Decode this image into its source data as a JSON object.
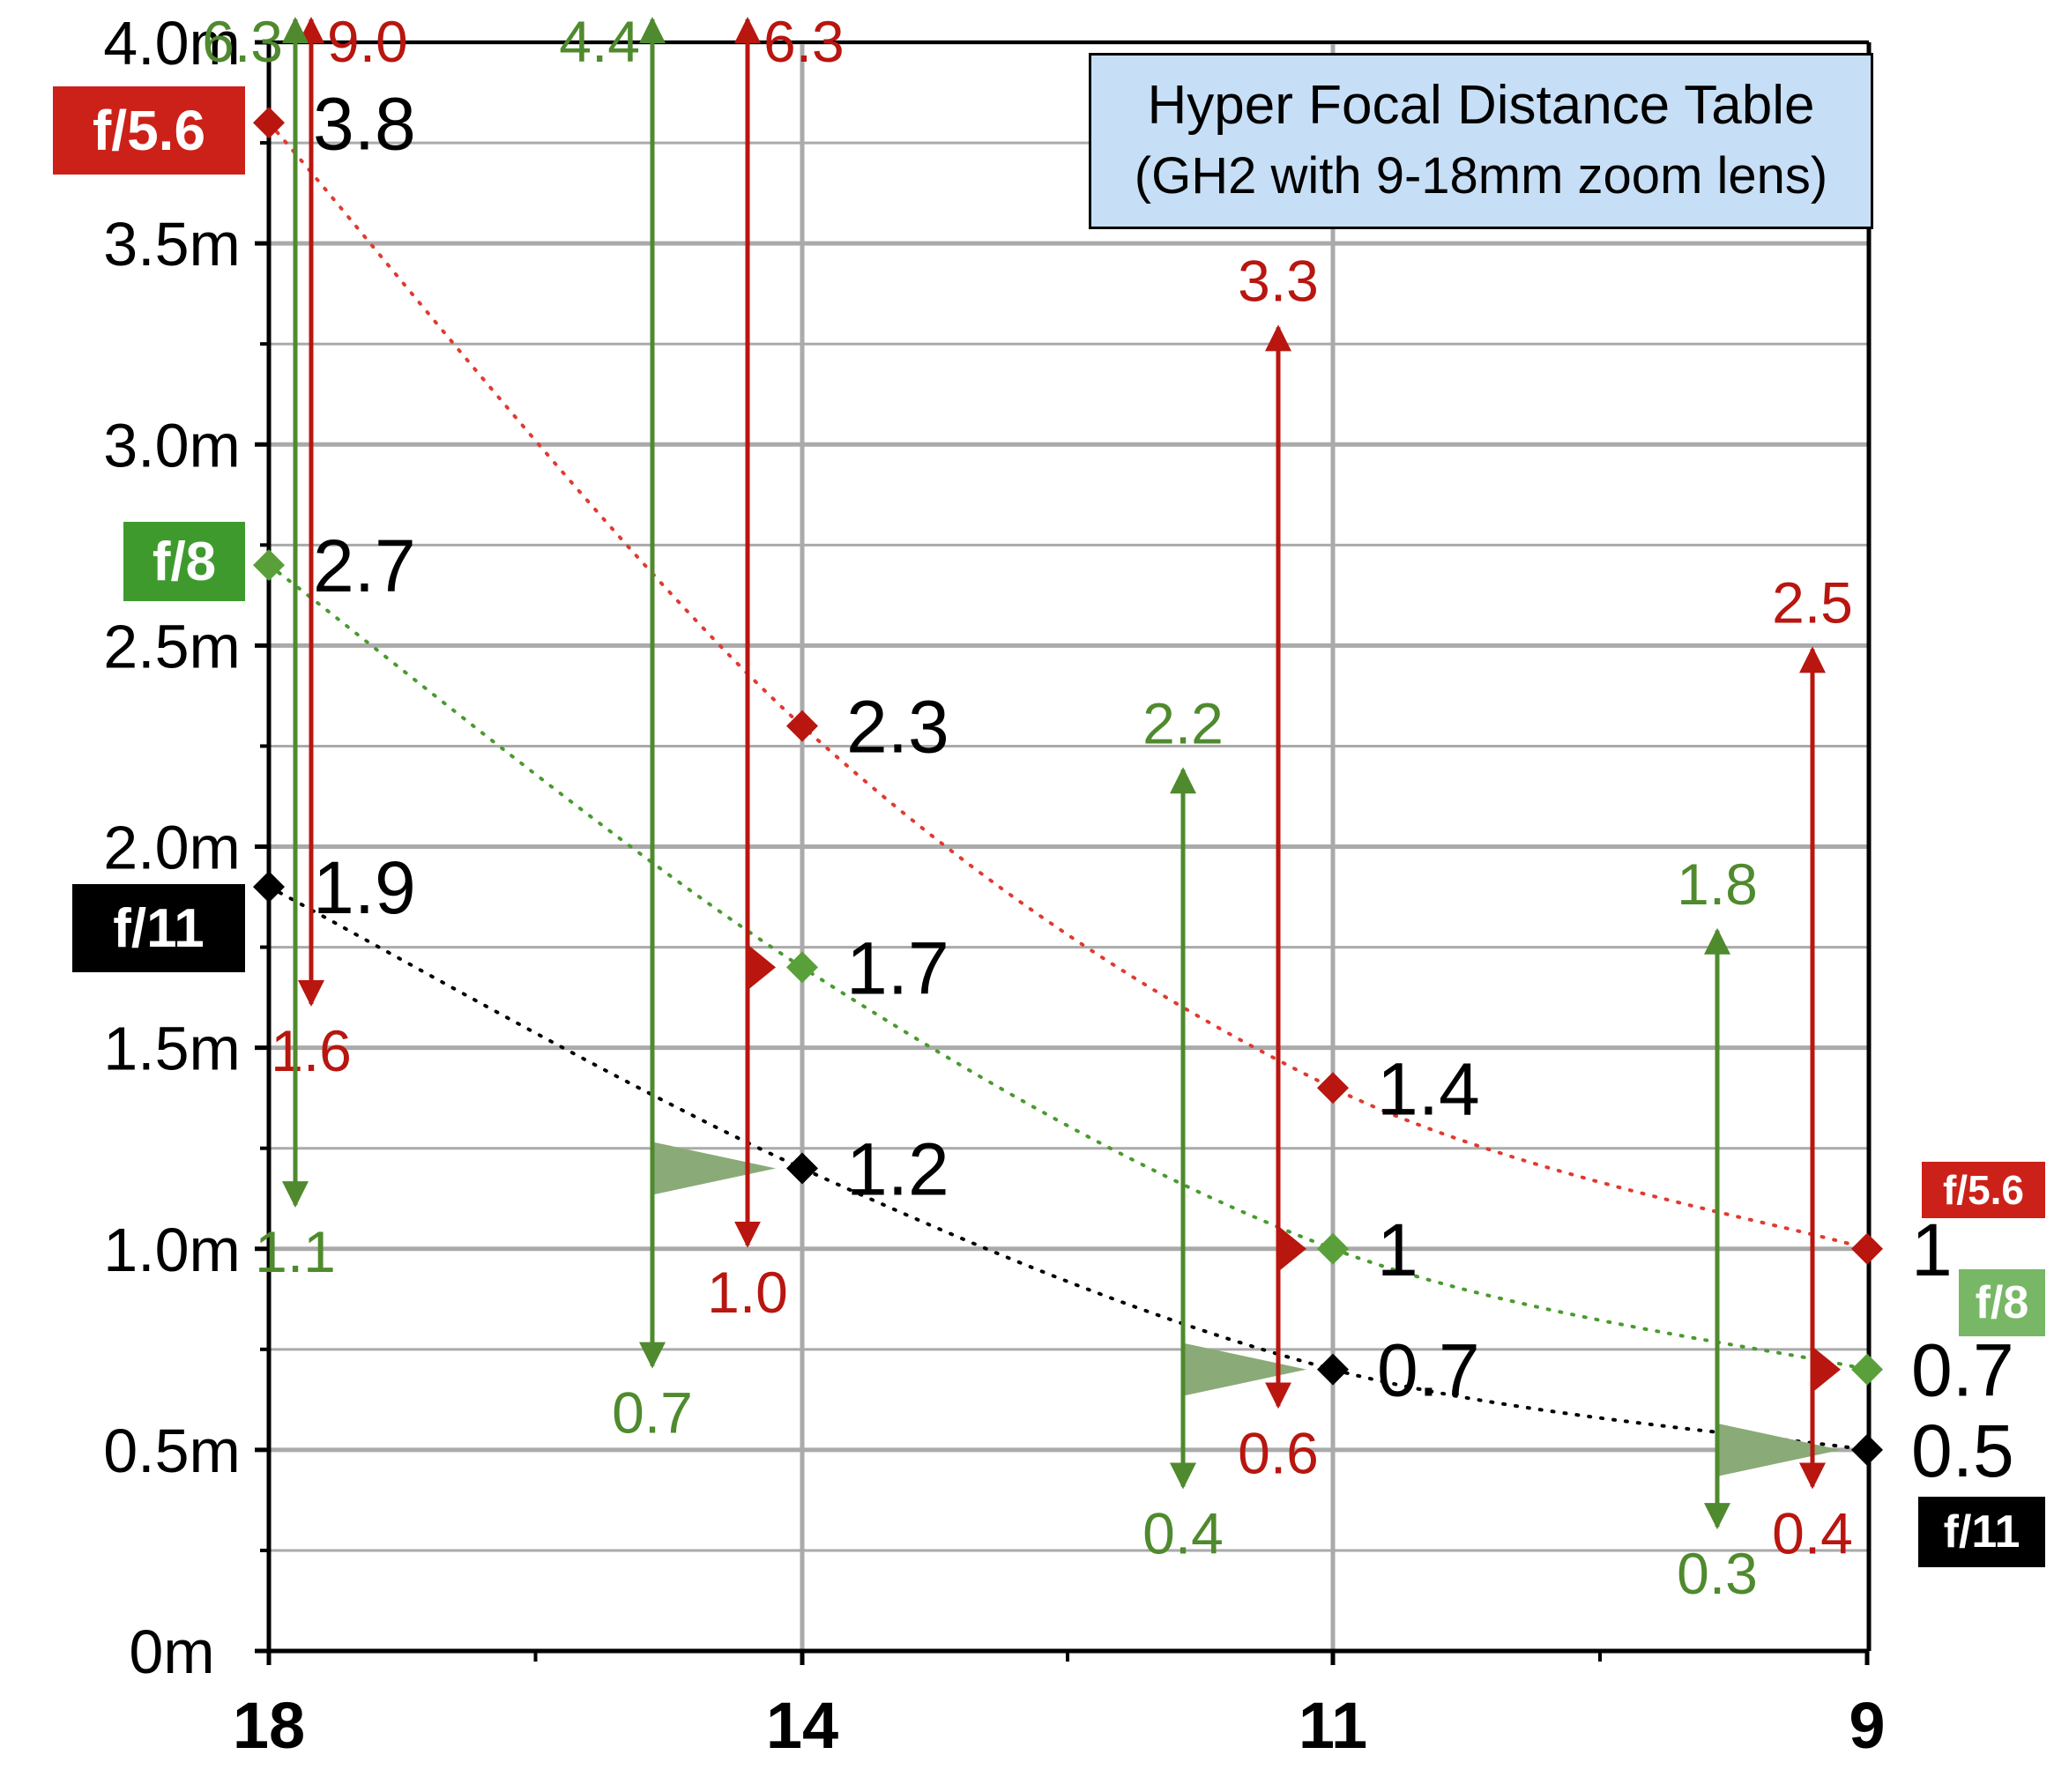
{
  "title": {
    "line1": "Hyper Focal Distance Table",
    "line2": "(GH2 with 9-18mm zoom lens)"
  },
  "colors": {
    "f56": "#b8160f",
    "f56_badge": "#cc2118",
    "f8": "#4f8a2e",
    "f8_badge_left": "#3f9a2e",
    "f8_badge_right": "#78b765",
    "f11": "#000000",
    "grid": "#aaaaaa",
    "wedge": "#8aaa78"
  },
  "badges": {
    "left_f56": "f/5.6",
    "left_f8": "f/8",
    "left_f11": "f/11",
    "right_f56": "f/5.6",
    "right_f8": "f/8",
    "right_f11": "f/11"
  },
  "chart_data": {
    "type": "line",
    "title": "Hyper Focal Distance Table (GH2 with 9-18mm zoom lens)",
    "xlabel": "",
    "ylabel": "",
    "categories": [
      "18",
      "14",
      "11",
      "9"
    ],
    "ylim": [
      0,
      4.0
    ],
    "y_ticks": [
      {
        "value": 0,
        "label": "0m"
      },
      {
        "value": 0.5,
        "label": "0.5m"
      },
      {
        "value": 1.0,
        "label": "1.0m"
      },
      {
        "value": 1.5,
        "label": "1.5m"
      },
      {
        "value": 2.0,
        "label": "2.0m"
      },
      {
        "value": 2.5,
        "label": "2.5m"
      },
      {
        "value": 3.0,
        "label": "3.0m"
      },
      {
        "value": 3.5,
        "label": "3.5m"
      },
      {
        "value": 4.0,
        "label": "4.0m"
      }
    ],
    "grid": true,
    "series": [
      {
        "name": "f/5.6",
        "color_key": "f56",
        "values": [
          3.8,
          2.3,
          1.4,
          1.0
        ],
        "labels": [
          "3.8",
          "2.3",
          "1.4",
          "1"
        ],
        "ranges": [
          {
            "category": "18",
            "near": 1.6,
            "far": 9.0,
            "near_label": "1.6",
            "far_label": "9.0"
          },
          {
            "category": "14",
            "near": 1.0,
            "far": 6.3,
            "near_label": "1.0",
            "far_label": "6.3"
          },
          {
            "category": "11",
            "near": 0.6,
            "far": 3.3,
            "near_label": "0.6",
            "far_label": "3.3"
          },
          {
            "category": "9",
            "near": 0.4,
            "far": 2.5,
            "near_label": "0.4",
            "far_label": "2.5"
          }
        ]
      },
      {
        "name": "f/8",
        "color_key": "f8",
        "values": [
          2.7,
          1.7,
          1.0,
          0.7
        ],
        "labels": [
          "2.7",
          "1.7",
          "1",
          "0.7"
        ],
        "ranges": [
          {
            "category": "18",
            "near": 1.1,
            "far": 6.3,
            "near_label": "1.1",
            "far_label": "6.3"
          },
          {
            "category": "14",
            "near": 0.7,
            "far": 4.4,
            "near_label": "0.7",
            "far_label": "4.4"
          },
          {
            "category": "11",
            "near": 0.4,
            "far": 2.2,
            "near_label": "0.4",
            "far_label": "2.2"
          },
          {
            "category": "9",
            "near": 0.3,
            "far": 1.8,
            "near_label": "0.3",
            "far_label": "1.8"
          }
        ]
      },
      {
        "name": "f/11",
        "color_key": "f11",
        "values": [
          1.9,
          1.2,
          0.7,
          0.5
        ],
        "labels": [
          "1.9",
          "1.2",
          "0.7",
          "0.5"
        ]
      }
    ]
  }
}
